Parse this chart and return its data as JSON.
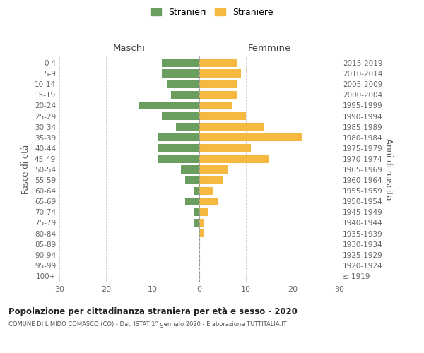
{
  "age_groups": [
    "100+",
    "95-99",
    "90-94",
    "85-89",
    "80-84",
    "75-79",
    "70-74",
    "65-69",
    "60-64",
    "55-59",
    "50-54",
    "45-49",
    "40-44",
    "35-39",
    "30-34",
    "25-29",
    "20-24",
    "15-19",
    "10-14",
    "5-9",
    "0-4"
  ],
  "birth_years": [
    "≤ 1919",
    "1920-1924",
    "1925-1929",
    "1930-1934",
    "1935-1939",
    "1940-1944",
    "1945-1949",
    "1950-1954",
    "1955-1959",
    "1960-1964",
    "1965-1969",
    "1970-1974",
    "1975-1979",
    "1980-1984",
    "1985-1989",
    "1990-1994",
    "1995-1999",
    "2000-2004",
    "2005-2009",
    "2010-2014",
    "2015-2019"
  ],
  "males": [
    0,
    0,
    0,
    0,
    0,
    1,
    1,
    3,
    1,
    3,
    4,
    9,
    9,
    9,
    5,
    8,
    13,
    6,
    7,
    8,
    8
  ],
  "females": [
    0,
    0,
    0,
    0,
    1,
    1,
    2,
    4,
    3,
    5,
    6,
    15,
    11,
    22,
    14,
    10,
    7,
    8,
    8,
    9,
    8
  ],
  "male_color": "#6a9e5f",
  "female_color": "#f5b942",
  "title": "Popolazione per cittadinanza straniera per età e sesso - 2020",
  "subtitle": "COMUNE DI LIMIDO COMASCO (CO) - Dati ISTAT 1° gennaio 2020 - Elaborazione TUTTITALIA.IT",
  "xlabel_left": "Maschi",
  "xlabel_right": "Femmine",
  "ylabel_left": "Fasce di età",
  "ylabel_right": "Anni di nascita",
  "legend_male": "Stranieri",
  "legend_female": "Straniere",
  "xlim": 30,
  "background_color": "#ffffff",
  "grid_color": "#cccccc"
}
